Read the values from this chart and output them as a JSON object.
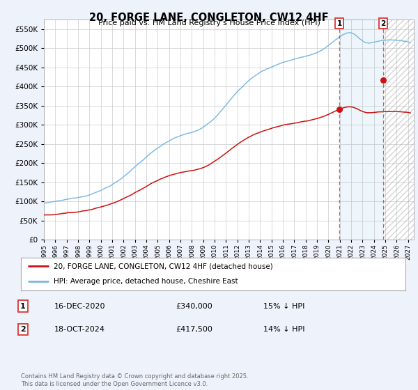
{
  "title": "20, FORGE LANE, CONGLETON, CW12 4HF",
  "subtitle": "Price paid vs. HM Land Registry's House Price Index (HPI)",
  "bg_color": "#eef2fa",
  "plot_bg": "#ffffff",
  "grid_color": "#cccccc",
  "hpi_color": "#7ab8e0",
  "price_color": "#cc1111",
  "dashed_line_color": "#dd3333",
  "ylim": [
    0,
    575000
  ],
  "yticks": [
    0,
    50000,
    100000,
    150000,
    200000,
    250000,
    300000,
    350000,
    400000,
    450000,
    500000,
    550000
  ],
  "legend_label_price": "20, FORGE LANE, CONGLETON, CW12 4HF (detached house)",
  "legend_label_hpi": "HPI: Average price, detached house, Cheshire East",
  "transaction1_date": "16-DEC-2020",
  "transaction1_price": "£340,000",
  "transaction1_note": "15% ↓ HPI",
  "transaction1_x": 2020.96,
  "transaction1_y": 340000,
  "transaction2_date": "18-OCT-2024",
  "transaction2_price": "£417,500",
  "transaction2_note": "14% ↓ HPI",
  "transaction2_x": 2024.79,
  "transaction2_y": 417500,
  "footer": "Contains HM Land Registry data © Crown copyright and database right 2025.\nThis data is licensed under the Open Government Licence v3.0.",
  "xmin": 1995.0,
  "xmax": 2027.5,
  "shade_start": 2020.96,
  "shade_end": 2024.79
}
